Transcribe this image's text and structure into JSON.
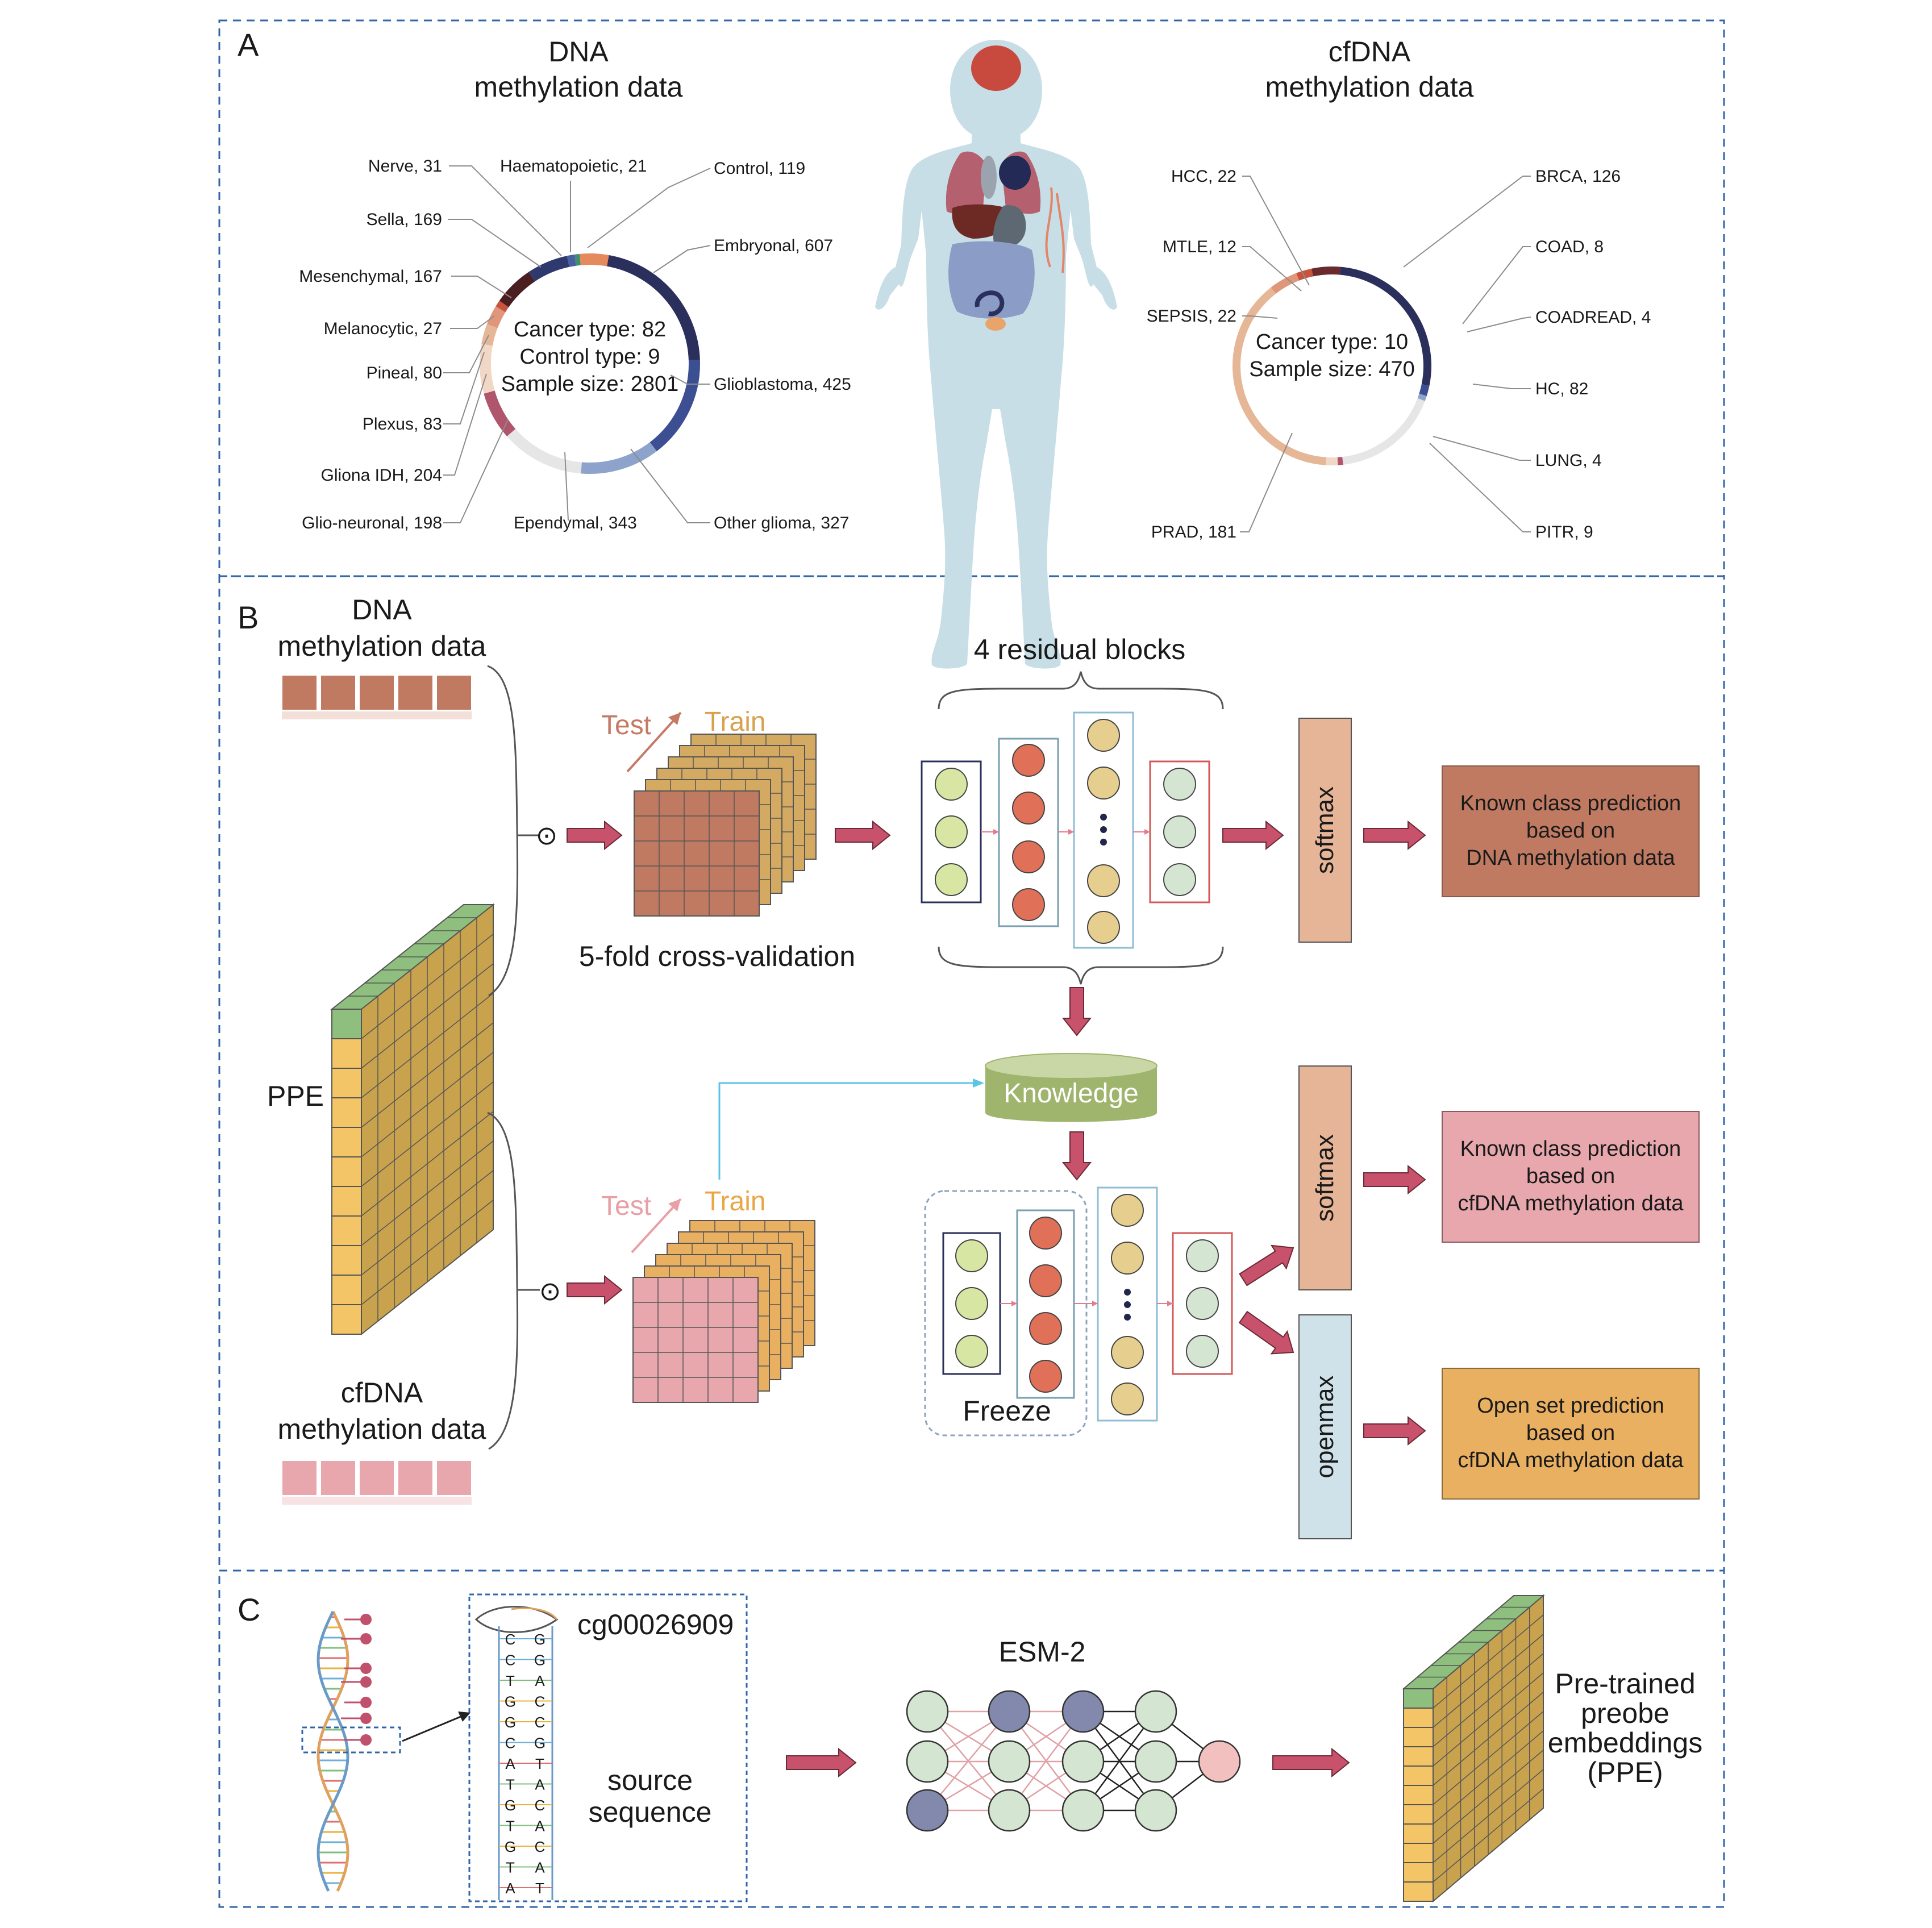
{
  "panels": {
    "a": "A",
    "b": "B",
    "c": "C"
  },
  "panel_a": {
    "left_title_line1": "DNA",
    "left_title_line2": "methylation data",
    "right_title_line1": "cfDNA",
    "right_title_line2": "methylation data",
    "left_center": [
      "Cancer type: 82",
      "Control type: 9",
      "Sample size: 2801"
    ],
    "right_center": [
      "Cancer type: 10",
      "Sample size: 470"
    ],
    "left_ring": [
      {
        "label": "Haematopoietic, 21",
        "value": 21,
        "color": "#3f8f6f"
      },
      {
        "label": "Control, 119",
        "value": 119,
        "color": "#e58a5c"
      },
      {
        "label": "Embryonal, 607",
        "value": 607,
        "color": "#2a2f5b"
      },
      {
        "label": "Glioblastoma, 425",
        "value": 425,
        "color": "#3d4f93"
      },
      {
        "label": "Other glioma, 327",
        "value": 327,
        "color": "#8ea3cb"
      },
      {
        "label": "Ependymal, 343",
        "value": 343,
        "color": "#e6e6e6"
      },
      {
        "label": "Glio-neuronal, 198",
        "value": 198,
        "color": "#b0566c"
      },
      {
        "label": "Gliona IDH, 204",
        "value": 204,
        "color": "#f1d7c6"
      },
      {
        "label": "Plexus, 83",
        "value": 83,
        "color": "#e5b796"
      },
      {
        "label": "Pineal, 80",
        "value": 80,
        "color": "#e0967a"
      },
      {
        "label": "Melanocytic, 27",
        "value": 27,
        "color": "#c8543d"
      },
      {
        "label": "Mesenchymal, 167",
        "value": 167,
        "color": "#4b1e22"
      },
      {
        "label": "Sella, 169",
        "value": 169,
        "color": "#2e3a6e"
      },
      {
        "label": "Nerve, 31",
        "value": 31,
        "color": "#4a5fa0"
      }
    ],
    "right_ring": [
      {
        "label": "BRCA, 126",
        "value": 126,
        "color": "#2a2f5b"
      },
      {
        "label": "COAD, 8",
        "value": 8,
        "color": "#3d4f93"
      },
      {
        "label": "COADREAD, 4",
        "value": 4,
        "color": "#8ea3cb"
      },
      {
        "label": "HC, 82",
        "value": 82,
        "color": "#e6e6e6"
      },
      {
        "label": "LUNG, 4",
        "value": 4,
        "color": "#b0566c"
      },
      {
        "label": "PITR, 9",
        "value": 9,
        "color": "#f1d7c6"
      },
      {
        "label": "PRAD, 181",
        "value": 181,
        "color": "#e5b796"
      },
      {
        "label": "SEPSIS, 22",
        "value": 22,
        "color": "#e0967a"
      },
      {
        "label": "MTLE, 12",
        "value": 12,
        "color": "#c8543d"
      },
      {
        "label": "HCC, 22",
        "value": 22,
        "color": "#6b2a2e"
      }
    ]
  },
  "panel_b": {
    "dna_title_line1": "DNA",
    "dna_title_line2": "methylation data",
    "cfdna_title_line1": "cfDNA",
    "cfdna_title_line2": "methylation data",
    "ppe": "PPE",
    "odot": "⊙",
    "test": "Test",
    "train": "Train",
    "cv_label": "5-fold cross-validation",
    "residual_label": "4 residual blocks",
    "knowledge": "Knowledge",
    "freeze": "Freeze",
    "softmax": "softmax",
    "openmax": "openmax",
    "box1": [
      "Known class prediction",
      "based on",
      "DNA methylation data"
    ],
    "box2": [
      "Known class prediction",
      "based on",
      "cfDNA methylation data"
    ],
    "box3": [
      "Open set prediction",
      "based on",
      "cfDNA methylation data"
    ]
  },
  "panel_c": {
    "probe_id": "cg00026909",
    "source_line1": "source",
    "source_line2": "sequence",
    "seq_left": [
      "C",
      "C",
      "T",
      "G",
      "G",
      "C",
      "A",
      "T",
      "G",
      "T",
      "G",
      "T",
      "A"
    ],
    "seq_right": [
      "G",
      "G",
      "A",
      "C",
      "C",
      "G",
      "T",
      "A",
      "C",
      "A",
      "C",
      "A",
      "T"
    ],
    "esm": "ESM-2",
    "ppe_lines": [
      "Pre-trained",
      "preobe",
      "embeddings",
      "(PPE)"
    ]
  },
  "colors": {
    "arrow": "#c8516c",
    "border_dash": "#2f66a8",
    "dna_square": "#c07a62",
    "cfdna_square": "#e8a6ad",
    "cube_top": "#8fbf7f",
    "cube_face": "#f3c567",
    "softmax_fill": "#e6b496",
    "openmax_fill": "#cfe2e9",
    "box1_fill": "#c07a62",
    "box2_fill": "#e8a6ad",
    "box3_fill": "#eab062",
    "knowledge_fill": "#9fb46d",
    "node_green": "#d7e6a3",
    "node_red": "#e07058",
    "node_tan": "#e6cf8e",
    "node_mint": "#d4e6d1",
    "node_navy": "#8389ad",
    "node_pink": "#f2c1bf"
  }
}
